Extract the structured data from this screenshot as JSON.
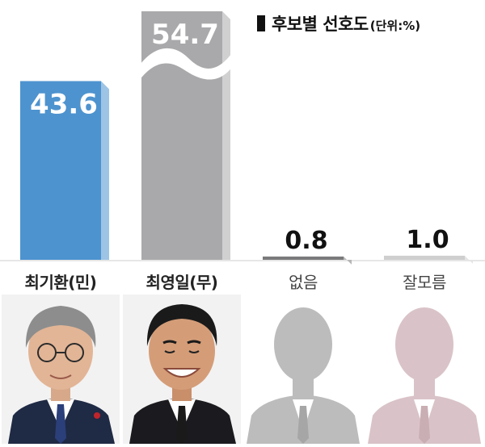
{
  "legend": {
    "title": "후보별 선호도",
    "unit": "(단위:%)"
  },
  "chart_data": {
    "type": "bar",
    "title": "후보별 선호도",
    "unit": "%",
    "categories": [
      "최기환(민)",
      "최영일(무)",
      "없음",
      "잘모름"
    ],
    "values": [
      43.6,
      54.7,
      0.8,
      1.0
    ],
    "value_labels": [
      "43.6",
      "54.7",
      "0.8",
      "1.0"
    ],
    "axis_break_on": "최영일(무)",
    "ylim": [
      0,
      50
    ],
    "colors": [
      "#4d93cf",
      "#a9a9ab",
      "#7a7a7c",
      "#cfcfcf"
    ],
    "label_colors": [
      "#ffffff",
      "#ffffff",
      "#111111",
      "#111111"
    ]
  },
  "photos": [
    {
      "name": "최기환",
      "type": "photo"
    },
    {
      "name": "최영일",
      "type": "photo"
    },
    {
      "name": "없음",
      "type": "silhouette",
      "color": "#bcbcbc"
    },
    {
      "name": "잘모름",
      "type": "silhouette",
      "color": "#d9c3c8"
    }
  ]
}
